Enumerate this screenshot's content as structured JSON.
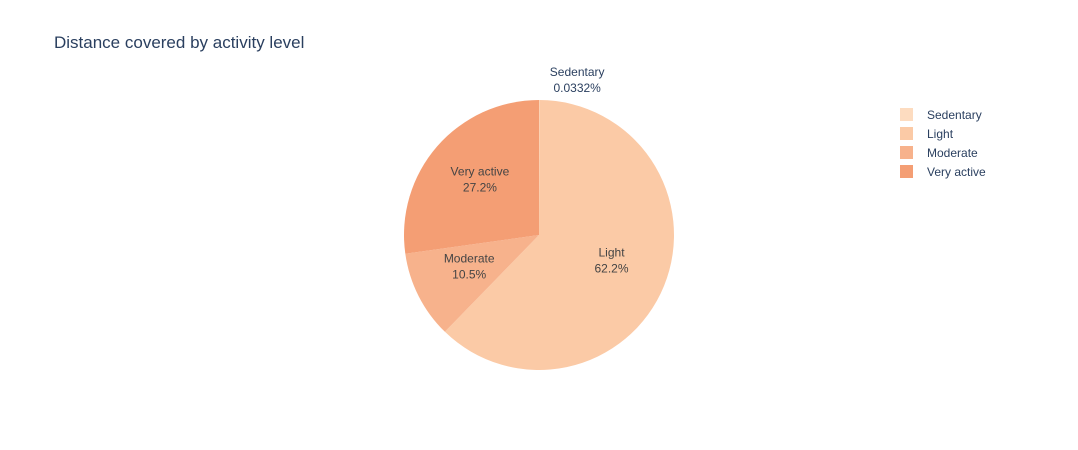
{
  "chart_data": {
    "type": "pie",
    "title": "Distance covered by activity level",
    "categories": [
      "Sedentary",
      "Light",
      "Moderate",
      "Very active"
    ],
    "values": [
      0.0332,
      62.2,
      10.5,
      27.2
    ],
    "value_labels": [
      "0.0332%",
      "62.2%",
      "10.5%",
      "27.2%"
    ],
    "colors": [
      "#fddcc0",
      "#fbcaa6",
      "#f7b28c",
      "#f49e74"
    ],
    "direction": "clockwise",
    "start": "top",
    "legend_position": "right"
  }
}
